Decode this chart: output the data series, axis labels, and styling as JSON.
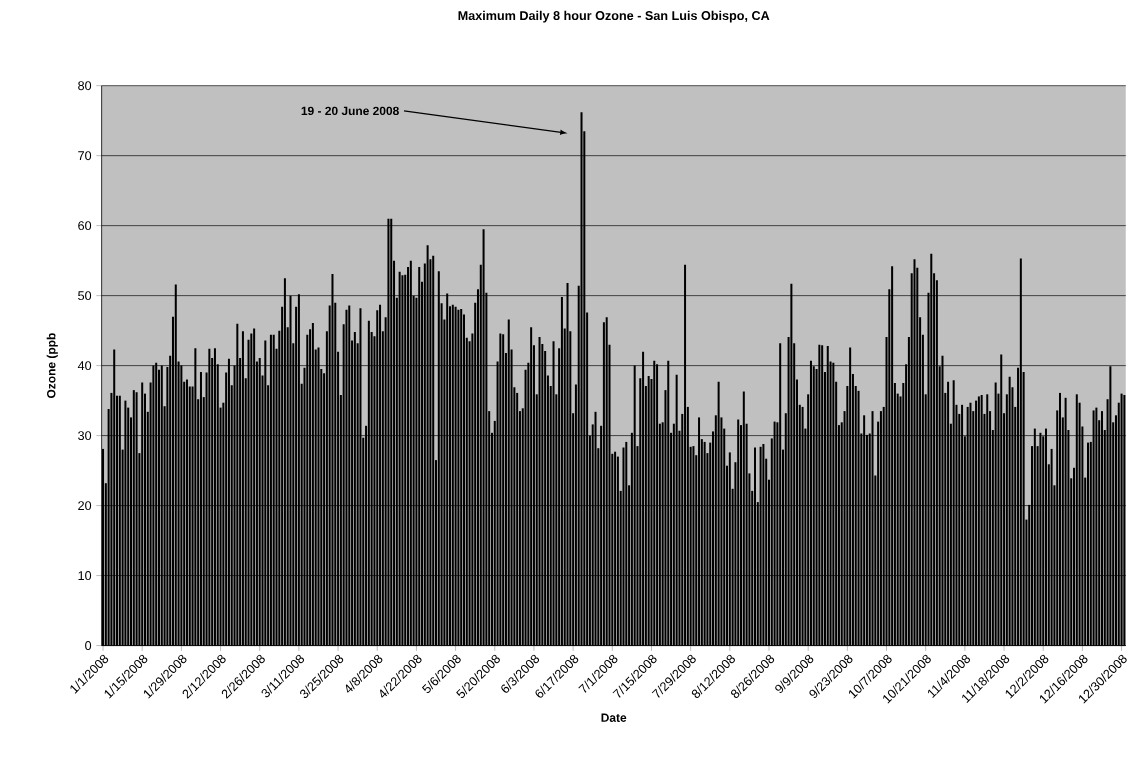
{
  "chart_data": {
    "type": "bar",
    "title": "Maximum Daily 8 hour Ozone - San Luis Obispo, CA",
    "xlabel": "Date",
    "ylabel": "Ozone (ppb",
    "color": "#000000",
    "ylim": [
      0,
      80
    ],
    "yticks": [
      0,
      10,
      20,
      30,
      40,
      50,
      60,
      70,
      80
    ],
    "grid": "y",
    "annotations": [
      "19 - 20 June 2008"
    ],
    "categories": [
      "1/1/2008",
      null,
      null,
      null,
      null,
      null,
      null,
      null,
      null,
      null,
      null,
      null,
      null,
      null,
      "1/15/2008",
      null,
      null,
      null,
      null,
      null,
      null,
      null,
      null,
      null,
      null,
      null,
      null,
      null,
      "1/29/2008",
      null,
      null,
      null,
      null,
      null,
      null,
      null,
      null,
      null,
      null,
      null,
      null,
      null,
      "2/12/2008",
      null,
      null,
      null,
      null,
      null,
      null,
      null,
      null,
      null,
      null,
      null,
      null,
      null,
      "2/26/2008",
      null,
      null,
      null,
      null,
      null,
      null,
      null,
      null,
      null,
      null,
      null,
      null,
      null,
      "3/11/2008",
      null,
      null,
      null,
      null,
      null,
      null,
      null,
      null,
      null,
      null,
      null,
      null,
      null,
      "3/25/2008",
      null,
      null,
      null,
      null,
      null,
      null,
      null,
      null,
      null,
      null,
      null,
      null,
      null,
      "4/8/2008",
      null,
      null,
      null,
      null,
      null,
      null,
      null,
      null,
      null,
      null,
      null,
      null,
      null,
      "4/22/2008",
      null,
      null,
      null,
      null,
      null,
      null,
      null,
      null,
      null,
      null,
      null,
      null,
      null,
      "5/6/2008",
      null,
      null,
      null,
      null,
      null,
      null,
      null,
      null,
      null,
      null,
      null,
      null,
      null,
      "5/20/2008",
      null,
      null,
      null,
      null,
      null,
      null,
      null,
      null,
      null,
      null,
      null,
      null,
      null,
      "6/3/2008",
      null,
      null,
      null,
      null,
      null,
      null,
      null,
      null,
      null,
      null,
      null,
      null,
      null,
      "6/17/2008",
      null,
      null,
      null,
      null,
      null,
      null,
      null,
      null,
      null,
      null,
      null,
      null,
      null,
      "7/1/2008",
      null,
      null,
      null,
      null,
      null,
      null,
      null,
      null,
      null,
      null,
      null,
      null,
      null,
      "7/15/2008",
      null,
      null,
      null,
      null,
      null,
      null,
      null,
      null,
      null,
      null,
      null,
      null,
      null,
      "7/29/2008",
      null,
      null,
      null,
      null,
      null,
      null,
      null,
      null,
      null,
      null,
      null,
      null,
      null,
      "8/12/2008",
      null,
      null,
      null,
      null,
      null,
      null,
      null,
      null,
      null,
      null,
      null,
      null,
      null,
      "8/26/2008",
      null,
      null,
      null,
      null,
      null,
      null,
      null,
      null,
      null,
      null,
      null,
      null,
      null,
      "9/9/2008",
      null,
      null,
      null,
      null,
      null,
      null,
      null,
      null,
      null,
      null,
      null,
      null,
      null,
      "9/23/2008",
      null,
      null,
      null,
      null,
      null,
      null,
      null,
      null,
      null,
      null,
      null,
      null,
      null,
      "10/7/2008",
      null,
      null,
      null,
      null,
      null,
      null,
      null,
      null,
      null,
      null,
      null,
      null,
      null,
      "10/21/2008",
      null,
      null,
      null,
      null,
      null,
      null,
      null,
      null,
      null,
      null,
      null,
      null,
      null,
      "11/4/2008",
      null,
      null,
      null,
      null,
      null,
      null,
      null,
      null,
      null,
      null,
      null,
      null,
      null,
      "11/18/2008",
      null,
      null,
      null,
      null,
      null,
      null,
      null,
      null,
      null,
      null,
      null,
      null,
      null,
      "12/2/2008",
      null,
      null,
      null,
      null,
      null,
      null,
      null,
      null,
      null,
      null,
      null,
      null,
      null,
      "12/16/2008",
      null,
      null,
      null,
      null,
      null,
      null,
      null,
      null,
      null,
      null,
      null,
      null,
      null,
      "12/30/2008",
      null
    ],
    "values": [
      28.1,
      23.2,
      33.8,
      36.1,
      42.3,
      35.7,
      35.7,
      28,
      35,
      34,
      32.6,
      36.5,
      36.2,
      27.5,
      37.6,
      36,
      33.4,
      37.6,
      40,
      40.4,
      39.4,
      40,
      34.2,
      39.8,
      41.4,
      47,
      51.6,
      40.6,
      40,
      37.7,
      38,
      37,
      37,
      42.5,
      35.2,
      39.1,
      35.5,
      39,
      42.4,
      41.1,
      42.5,
      40.2,
      34,
      34.7,
      39,
      41,
      37.2,
      40,
      46,
      41.1,
      44.9,
      38.2,
      43.7,
      44.6,
      45.3,
      40.6,
      41.1,
      38.6,
      43.6,
      37.2,
      44.4,
      44.4,
      42.4,
      45,
      48.4,
      52.5,
      45.5,
      50,
      43.2,
      48.4,
      50.2,
      37.4,
      39.7,
      44.4,
      45.2,
      46.1,
      42.3,
      42.6,
      39.5,
      38.9,
      44.9,
      48.6,
      53.1,
      49,
      42,
      35.8,
      45.9,
      48,
      48.6,
      43.6,
      44.8,
      43.2,
      48.2,
      29.7,
      31.4,
      46.4,
      44.8,
      44.2,
      47.9,
      48.7,
      44.9,
      46.9,
      61,
      61,
      55,
      49.7,
      53.4,
      52.9,
      53,
      54.1,
      55,
      50,
      49.7,
      54.1,
      52,
      54.6,
      57.2,
      55.2,
      55.7,
      26.5,
      53.5,
      48.9,
      46.6,
      50.3,
      48.5,
      48.7,
      48.4,
      48,
      48.1,
      47.3,
      44,
      43.5,
      44.6,
      49,
      50.9,
      54.4,
      59.5,
      50.4,
      33.5,
      30.4,
      32.1,
      40.6,
      44.6,
      44.5,
      41.8,
      46.6,
      42.3,
      36.9,
      36.1,
      33.5,
      33.9,
      39.4,
      40.4,
      45.5,
      42.9,
      35.9,
      44.1,
      43.1,
      42.1,
      38.6,
      37.1,
      43.5,
      35.9,
      42.5,
      49.8,
      45.3,
      51.8,
      44.9,
      33.2,
      37.3,
      51.4,
      76.2,
      73.5,
      47.6,
      30,
      31.6,
      33.4,
      28.2,
      31.4,
      46.2,
      46.9,
      43,
      27.4,
      27.7,
      27,
      22.1,
      28.3,
      29.1,
      22.9,
      30.4,
      40,
      28.5,
      38.2,
      42,
      37.1,
      38.5,
      38.1,
      40.7,
      40.2,
      31.7,
      31.9,
      36.5,
      40.7,
      30.4,
      31.7,
      38.7,
      30.7,
      33.1,
      54.4,
      34.1,
      28.4,
      28.5,
      27.2,
      32.6,
      29.5,
      29.1,
      27.5,
      29,
      30.6,
      32.9,
      37.7,
      32.6,
      31,
      25.7,
      27.6,
      22.4,
      26.2,
      32.3,
      31.5,
      36.3,
      31.7,
      24.6,
      22.1,
      28.3,
      20.5,
      28.4,
      28.8,
      26.7,
      23.7,
      29.6,
      32,
      31.9,
      43.2,
      28,
      33.2,
      44.1,
      51.7,
      43.2,
      38,
      34.4,
      34.1,
      31,
      35.9,
      40.7,
      39.9,
      39.5,
      43,
      42.9,
      39.1,
      42.8,
      40.6,
      40.4,
      37.7,
      31.5,
      31.9,
      33.5,
      37.1,
      42.6,
      38.8,
      37.1,
      36.4,
      30.3,
      32.9,
      30.1,
      30.3,
      33.5,
      24.3,
      32,
      33.5,
      34.1,
      44.1,
      50.9,
      54.2,
      37.5,
      36,
      35.6,
      37.5,
      40.2,
      44.1,
      53.2,
      55.2,
      54,
      46.9,
      44.4,
      35.9,
      50.4,
      56,
      53.2,
      52.2,
      39.9,
      41.4,
      36.1,
      37.7,
      31.7,
      37.9,
      34.4,
      33.1,
      34.4,
      29.9,
      34.1,
      34.7,
      33.5,
      35,
      35.6,
      35.8,
      33.1,
      35.9,
      33.5,
      30.8,
      37.6,
      36,
      41.6,
      33.2,
      35.9,
      38.4,
      36.9,
      34.1,
      39.7,
      55.3,
      39.1,
      18,
      20.1,
      28.5,
      31,
      28.5,
      30.4,
      29.9,
      31,
      25.9,
      28.1,
      22.9,
      33.6,
      36.1,
      32.6,
      35.4,
      30.8,
      23.9,
      25.4,
      35.9,
      34.7,
      31.3,
      24,
      29,
      29.1,
      33.6,
      34,
      32.2,
      33.5,
      30.8,
      35.2,
      39.9,
      31.9,
      32.9,
      34.7,
      36,
      35.8
    ]
  }
}
